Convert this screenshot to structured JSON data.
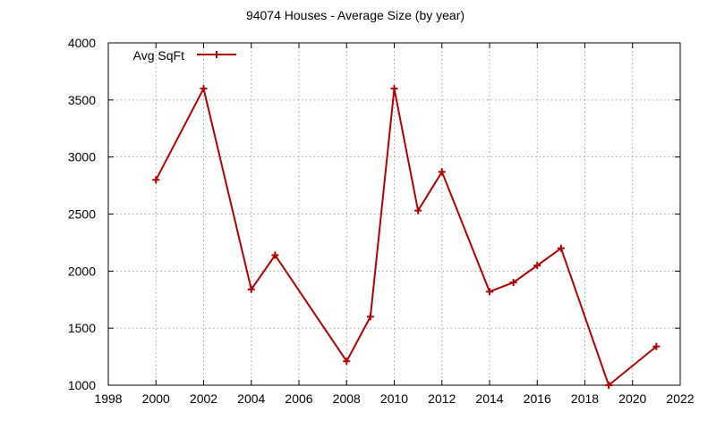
{
  "chart_data": {
    "type": "line",
    "title": "94074 Houses - Average Size (by year)",
    "xlabel": "",
    "ylabel": "",
    "xlim": [
      1998,
      2022
    ],
    "ylim": [
      1000,
      4000
    ],
    "x_ticks": [
      1998,
      2000,
      2002,
      2004,
      2006,
      2008,
      2010,
      2012,
      2014,
      2016,
      2018,
      2020,
      2022
    ],
    "y_ticks": [
      1000,
      1500,
      2000,
      2500,
      3000,
      3500,
      4000
    ],
    "grid": true,
    "legend_position": "top-left",
    "series": [
      {
        "name": "Avg SqFt",
        "color": "#b30000",
        "marker": "plus",
        "x": [
          2000,
          2002,
          2004,
          2005,
          2008,
          2009,
          2010,
          2011,
          2012,
          2014,
          2015,
          2016,
          2017,
          2019,
          2021
        ],
        "y": [
          2800,
          3600,
          1840,
          2140,
          1210,
          1600,
          3600,
          2530,
          2870,
          1820,
          1900,
          2050,
          2200,
          1000,
          1340
        ]
      }
    ]
  }
}
